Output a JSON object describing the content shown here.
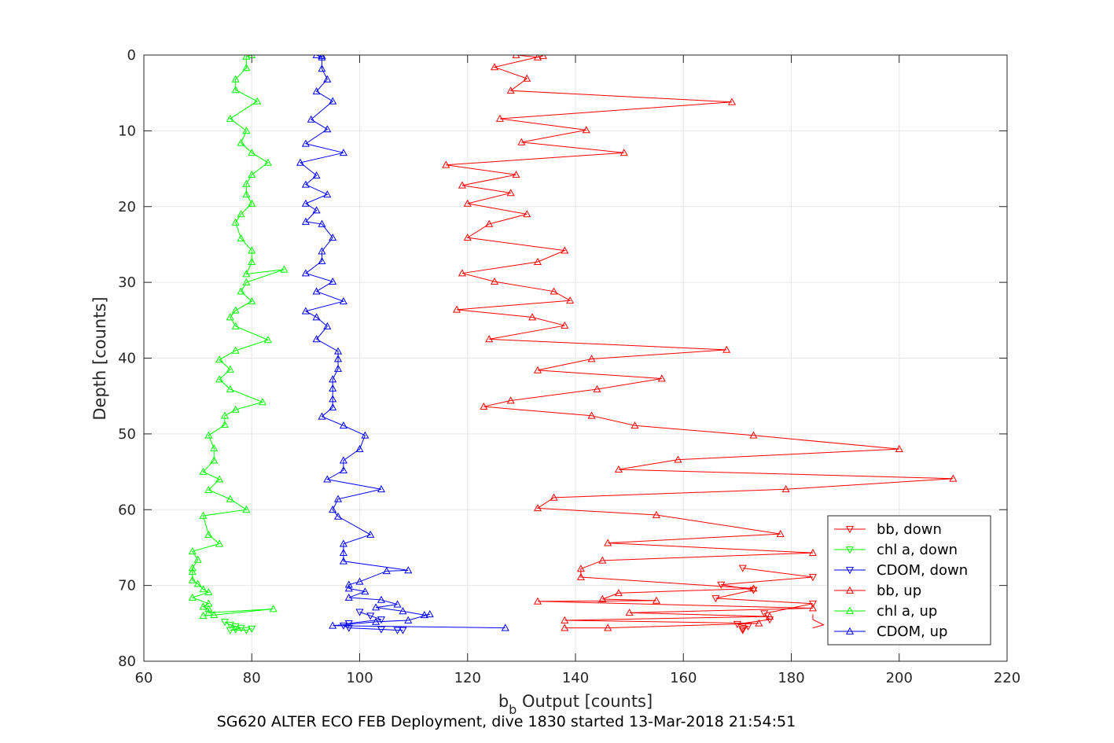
{
  "caption": "SG620 ALTER ECO FEB Deployment, dive 1830 started 13-Mar-2018 21:54:51",
  "chart_data": {
    "type": "line",
    "title": "",
    "xlabel_main": "b",
    "xlabel_sub": "b",
    "xlabel_rest": " Output [counts]",
    "ylabel": "Depth [counts]",
    "xlim": [
      60,
      220
    ],
    "ylim": [
      0,
      80
    ],
    "y_reversed": true,
    "grid": true,
    "legend_position": "bottom-right",
    "xticks": [
      60,
      80,
      100,
      120,
      140,
      160,
      180,
      200,
      220
    ],
    "yticks": [
      0,
      10,
      20,
      30,
      40,
      50,
      60,
      70,
      80
    ],
    "series": [
      {
        "name": "bb, down",
        "color": "#ff0000",
        "marker": "triangle-down",
        "x": [
          171,
          184,
          167,
          173,
          166,
          184,
          175,
          176,
          170,
          172,
          171,
          171
        ],
        "y": [
          67.7,
          68.9,
          69.9,
          70.6,
          71.7,
          72.4,
          73.7,
          74.5,
          75.1,
          75.4,
          75.7,
          75.9
        ]
      },
      {
        "name": "chl a, down",
        "color": "#00ff00",
        "marker": "triangle-down",
        "x": [
          75,
          76,
          77,
          78,
          77,
          76,
          79,
          80
        ],
        "y": [
          74.8,
          75.2,
          75.4,
          75.6,
          75.8,
          75.9,
          75.9,
          75.7
        ]
      },
      {
        "name": "CDOM, down",
        "color": "#0000ff",
        "marker": "triangle-down",
        "x": [
          100,
          102,
          104,
          98,
          97,
          98,
          104,
          107,
          108
        ],
        "y": [
          73.5,
          74.0,
          74.5,
          75.0,
          75.3,
          75.6,
          75.8,
          75.9,
          75.9
        ]
      },
      {
        "name": "bb, up",
        "color": "#ff0000",
        "marker": "triangle-up",
        "x": [
          129,
          133,
          134,
          125,
          131,
          128,
          169,
          126,
          142,
          130,
          149,
          116,
          129,
          119,
          128,
          120,
          131,
          124,
          120,
          138,
          133,
          119,
          125,
          136,
          139,
          118,
          132,
          138,
          124,
          168,
          143,
          133,
          156,
          144,
          128,
          123,
          143,
          151,
          173,
          200,
          159,
          148,
          210,
          179,
          136,
          133,
          155,
          178,
          146,
          184,
          145,
          141,
          141,
          173,
          148,
          145,
          155,
          133,
          184,
          150,
          176,
          138,
          174,
          146,
          138
        ],
        "y": [
          0,
          0.3,
          0.1,
          1.6,
          3.1,
          4.7,
          6.2,
          8.4,
          9.9,
          11.5,
          12.9,
          14.5,
          15.8,
          17.2,
          18.2,
          19.6,
          21.0,
          22.3,
          24.1,
          25.8,
          27.3,
          28.8,
          29.9,
          31.2,
          32.4,
          33.6,
          34.6,
          35.7,
          37.5,
          38.9,
          40.1,
          41.6,
          42.7,
          44.1,
          45.6,
          46.4,
          47.6,
          48.9,
          50.2,
          52.0,
          53.4,
          54.7,
          55.9,
          57.3,
          58.4,
          59.8,
          60.7,
          63.2,
          64.4,
          65.7,
          66.7,
          67.8,
          68.9,
          70.4,
          71.0,
          71.8,
          72.0,
          72.1,
          73.0,
          73.6,
          74.1,
          74.6,
          75.0,
          75.6,
          75.6
        ],
        "tail_x": [
          184,
          184,
          186,
          184
        ],
        "tail_y": [
          73.8,
          74.5,
          75.2,
          75.6
        ]
      },
      {
        "name": "chl a, up",
        "color": "#00ff00",
        "marker": "triangle-up",
        "x": [
          80,
          79,
          79,
          77,
          77,
          81,
          76,
          79,
          78,
          80,
          83,
          80,
          79,
          79,
          80,
          78,
          77,
          78,
          80,
          80,
          79,
          86,
          79,
          78,
          80,
          77,
          76,
          77,
          83,
          77,
          74,
          76,
          74,
          76,
          82,
          77,
          75,
          75,
          72,
          73,
          73,
          71,
          74,
          72,
          76,
          79,
          71,
          72,
          74,
          69,
          70,
          69,
          69,
          69,
          70,
          71,
          72,
          69,
          72,
          71,
          72,
          72,
          84,
          73,
          71
        ],
        "y": [
          0,
          0.2,
          1.7,
          3.2,
          4.6,
          6.1,
          8.4,
          10.0,
          11.6,
          12.9,
          14.2,
          15.8,
          17.0,
          18.4,
          19.6,
          21.0,
          22.1,
          24.2,
          25.8,
          27.3,
          28.9,
          28.3,
          30.0,
          31.2,
          32.5,
          33.7,
          34.6,
          35.8,
          37.6,
          39.0,
          40.2,
          41.5,
          42.8,
          44.1,
          45.8,
          46.8,
          47.6,
          48.8,
          50.2,
          51.9,
          53.5,
          55.0,
          56.0,
          57.4,
          58.6,
          60.0,
          60.8,
          63.3,
          64.5,
          65.5,
          66.6,
          67.7,
          68.2,
          69.3,
          69.8,
          70.5,
          70.9,
          71.6,
          72.4,
          72.8,
          73.1,
          73.6,
          73.1,
          73.9,
          74.0
        ]
      },
      {
        "name": "CDOM, up",
        "color": "#0000ff",
        "marker": "triangle-up",
        "x": [
          92,
          93,
          93,
          93,
          94,
          92,
          95,
          91,
          94,
          90,
          97,
          89,
          92,
          90,
          94,
          90,
          92,
          90,
          93,
          95,
          93,
          93,
          90,
          95,
          92,
          97,
          90,
          92,
          94,
          92,
          96,
          96,
          96,
          95,
          95,
          95,
          95,
          93,
          97,
          101,
          100,
          97,
          97,
          94,
          104,
          96,
          95,
          96,
          102,
          97,
          97,
          97,
          109,
          105,
          100,
          98,
          98,
          101,
          98,
          104,
          107,
          103,
          108,
          112,
          113,
          109,
          103,
          95,
          127
        ],
        "y": [
          0,
          0.3,
          0.1,
          1.8,
          3.2,
          4.8,
          6.1,
          8.5,
          9.8,
          11.7,
          12.9,
          14.2,
          15.9,
          17.1,
          18.4,
          19.6,
          20.5,
          22.0,
          22.3,
          24.1,
          25.9,
          27.2,
          28.8,
          29.9,
          31.2,
          32.5,
          33.8,
          34.6,
          35.8,
          37.5,
          39.1,
          40.1,
          41.4,
          42.8,
          44.0,
          45.4,
          46.5,
          47.7,
          48.9,
          50.2,
          52.0,
          53.5,
          54.8,
          56.0,
          57.3,
          58.6,
          60.0,
          60.9,
          63.3,
          64.5,
          65.7,
          66.8,
          68.0,
          68.1,
          69.5,
          69.9,
          70.4,
          70.8,
          71.6,
          71.9,
          72.5,
          72.9,
          73.4,
          73.9,
          73.8,
          74.6,
          74.8,
          75.3,
          75.6
        ]
      }
    ]
  },
  "legend": {
    "items": [
      "bb, down",
      "chl a, down",
      "CDOM, down",
      "bb, up",
      "chl a, up",
      "CDOM, up"
    ]
  }
}
